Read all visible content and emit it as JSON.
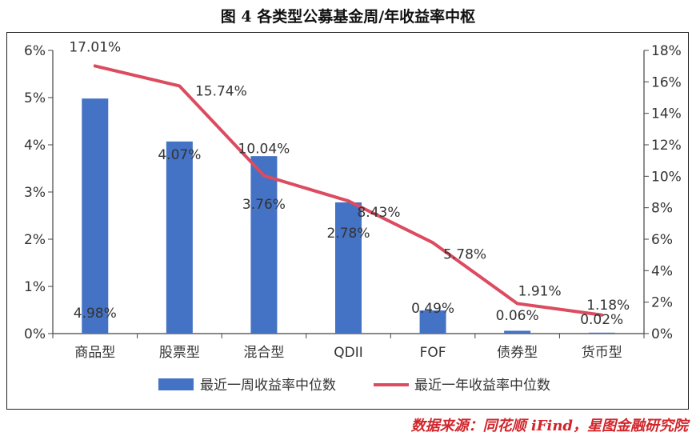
{
  "chart_data": {
    "type": "bar+line",
    "title": "图 4 各类型公募基金周/年收益率中枢",
    "categories": [
      "商品型",
      "股票型",
      "混合型",
      "QDII",
      "FOF",
      "债券型",
      "货币型"
    ],
    "series": [
      {
        "name": "最近一周收益率中位数",
        "type": "bar",
        "axis": "left",
        "color": "#4472C4",
        "values": [
          4.98,
          4.07,
          3.76,
          2.78,
          0.49,
          0.06,
          0.02
        ],
        "labels": [
          "4.98%",
          "4.07%",
          "3.76%",
          "2.78%",
          "0.49%",
          "0.06%",
          "0.02%"
        ]
      },
      {
        "name": "最近一年收益率中位数",
        "type": "line",
        "axis": "right",
        "color": "#DC4B5F",
        "values": [
          17.01,
          15.74,
          10.04,
          8.43,
          5.78,
          1.91,
          1.18
        ],
        "labels": [
          "17.01%",
          "15.74%",
          "10.04%",
          "8.43%",
          "5.78%",
          "1.91%",
          "1.18%"
        ]
      }
    ],
    "left_axis": {
      "ylim": [
        0,
        6
      ],
      "ticks": [
        "0%",
        "1%",
        "2%",
        "3%",
        "4%",
        "5%",
        "6%"
      ]
    },
    "right_axis": {
      "ylim": [
        0,
        18
      ],
      "ticks": [
        "0%",
        "2%",
        "4%",
        "6%",
        "8%",
        "10%",
        "12%",
        "14%",
        "16%",
        "18%"
      ]
    },
    "grid": false,
    "legend_position": "bottom"
  },
  "source": "数据来源：同花顺 iFind，星图金融研究院"
}
